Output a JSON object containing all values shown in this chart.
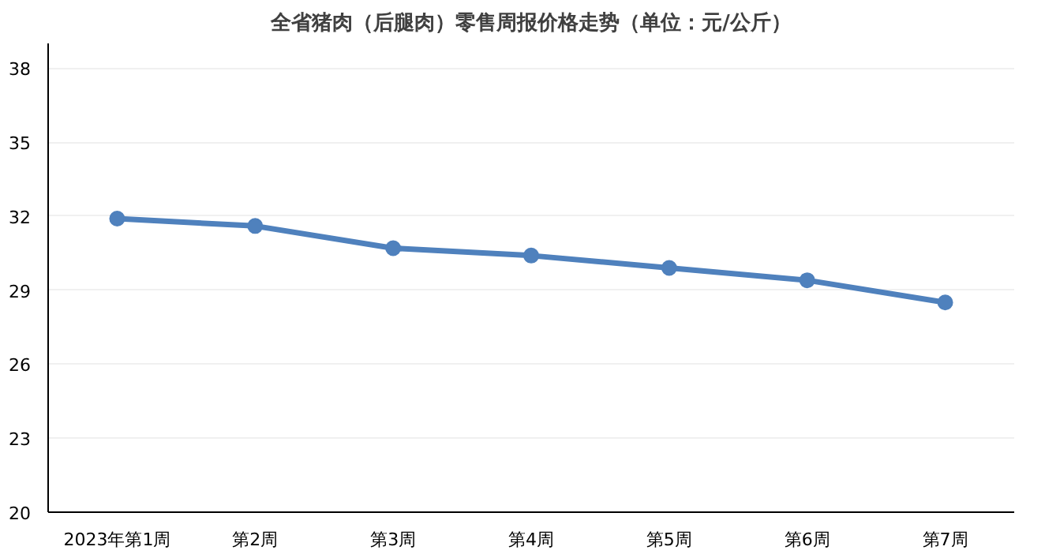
{
  "chart_data": {
    "type": "line",
    "title": "全省猪肉（后腿肉）零售周报价格走势（单位：元/公斤）",
    "categories": [
      "2023年第1周",
      "第2周",
      "第3周",
      "第4周",
      "第5周",
      "第6周",
      "第7周"
    ],
    "series": [
      {
        "color": "#4f81bd",
        "values": [
          31.9,
          31.6,
          30.7,
          30.4,
          29.9,
          29.4,
          28.5
        ]
      }
    ],
    "ylim": [
      20,
      39
    ],
    "yticks": [
      20,
      23,
      26,
      29,
      32,
      35,
      38
    ],
    "grid": "y",
    "marker": "circle",
    "line_style": "solid"
  }
}
